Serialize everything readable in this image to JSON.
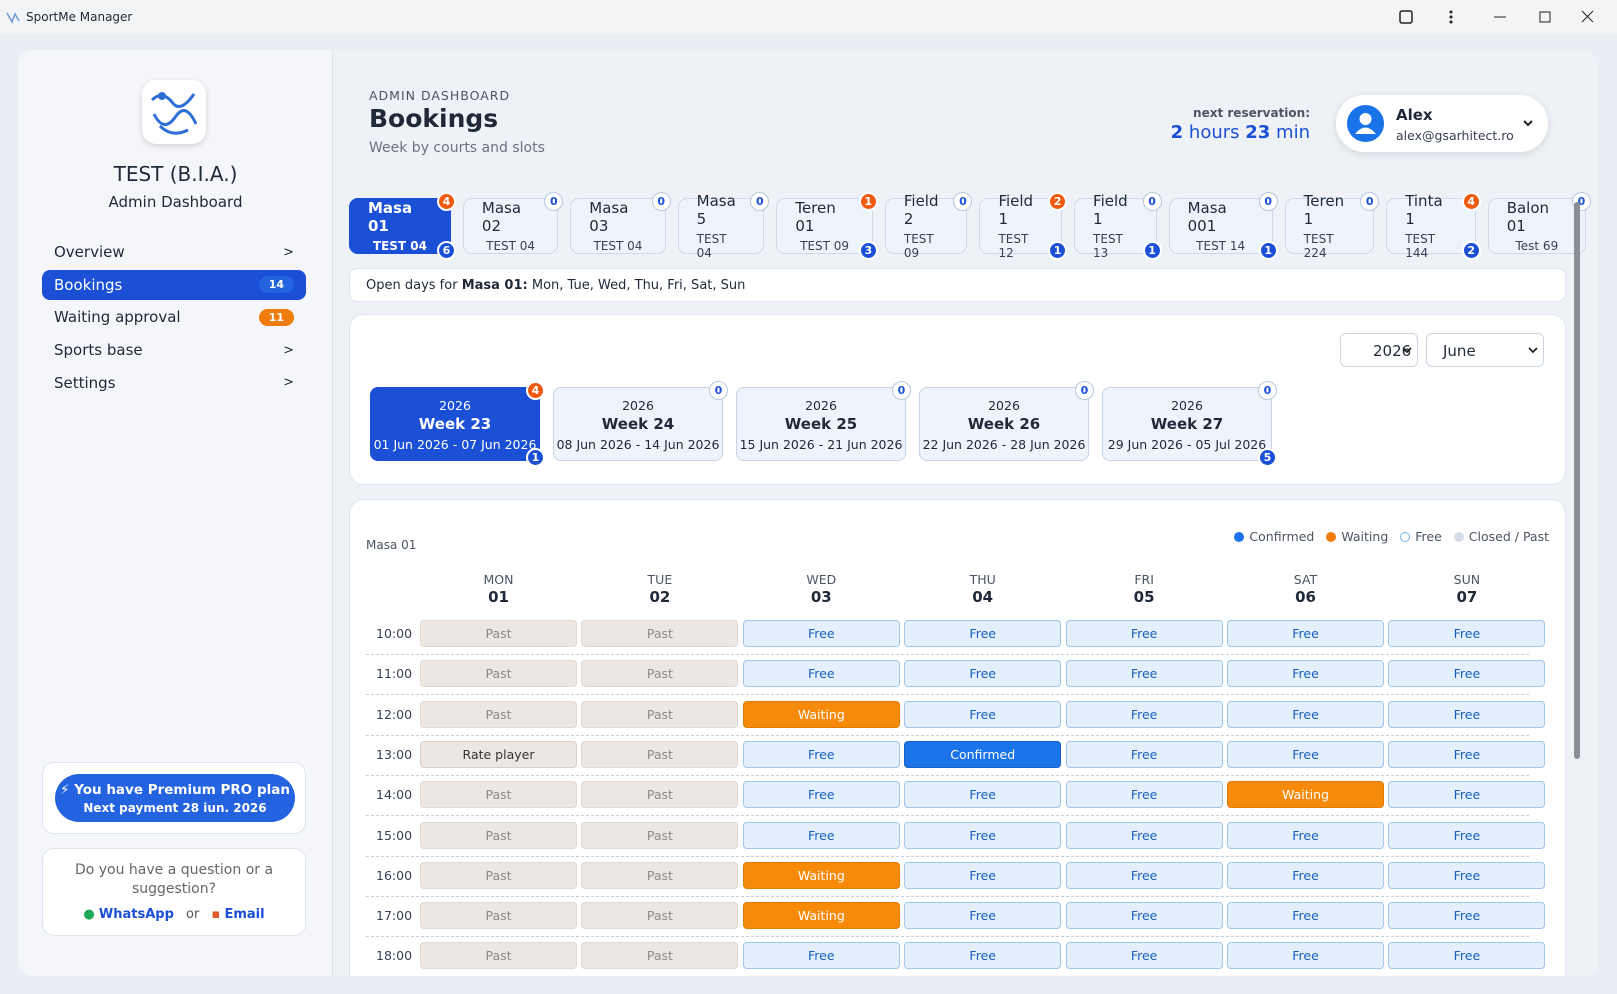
{
  "window": {
    "title": "SportMe Manager"
  },
  "sidebar": {
    "org": "TEST (B.I.A.)",
    "role": "Admin Dashboard",
    "nav": [
      {
        "label": "Overview",
        "marker": ">"
      },
      {
        "label": "Bookings",
        "badge": 14,
        "active": true
      },
      {
        "label": "Waiting approval",
        "badge": 11
      },
      {
        "label": "Sports base",
        "marker": ">"
      },
      {
        "label": "Settings",
        "marker": ">"
      }
    ],
    "plan": {
      "title": "You have Premium PRO plan",
      "next": "Next payment 28 iun. 2026"
    },
    "support": {
      "question": "Do you have a question or a suggestion?",
      "whatsapp": "WhatsApp",
      "or": "or",
      "email": "Email"
    }
  },
  "header": {
    "eyebrow": "ADMIN DASHBOARD",
    "title": "Bookings",
    "subtitle": "Week by courts and slots",
    "next_label": "next reservation:",
    "hours": 2,
    "hours_unit": "hours",
    "minutes": 23,
    "minutes_unit": "min",
    "user": {
      "name": "Alex",
      "email": "alex@gsarhitect.ro"
    }
  },
  "courts": [
    {
      "name": "Masa 01",
      "sub": "TEST 04",
      "top": 4,
      "bottom": 6,
      "active": true
    },
    {
      "name": "Masa 02",
      "sub": "TEST 04",
      "top": 0
    },
    {
      "name": "Masa 03",
      "sub": "TEST 04",
      "top": 0
    },
    {
      "name": "Masa 5",
      "sub": "TEST 04",
      "top": 0
    },
    {
      "name": "Teren 01",
      "sub": "TEST 09",
      "top": 1,
      "bottom": 3
    },
    {
      "name": "Field 2",
      "sub": "TEST 09",
      "top": 0
    },
    {
      "name": "Field 1",
      "sub": "TEST 12",
      "top": 2,
      "bottom": 1
    },
    {
      "name": "Field 1",
      "sub": "TEST 13",
      "top": 0,
      "bottom": 1
    },
    {
      "name": "Masa 001",
      "sub": "TEST 14",
      "top": 0,
      "bottom": 1
    },
    {
      "name": "Teren 1",
      "sub": "TEST 224",
      "top": 0
    },
    {
      "name": "Tinta 1",
      "sub": "TEST 144",
      "top": 4,
      "bottom": 2
    },
    {
      "name": "Balon 01",
      "sub": "Test 69",
      "top": 0
    }
  ],
  "open_days": {
    "prefix": "Open days for",
    "court": "Masa 01:",
    "days": "Mon, Tue, Wed, Thu, Fri, Sat, Sun"
  },
  "filters": {
    "year": "2026",
    "month": "June"
  },
  "weeks": [
    {
      "year": "2026",
      "label": "Week 23",
      "range": "01 Jun 2026 - 07 Jun 2026",
      "top": 4,
      "bottom": 1,
      "active": true
    },
    {
      "year": "2026",
      "label": "Week 24",
      "range": "08 Jun 2026 - 14 Jun 2026",
      "top": 0
    },
    {
      "year": "2026",
      "label": "Week 25",
      "range": "15 Jun 2026 - 21 Jun 2026",
      "top": 0
    },
    {
      "year": "2026",
      "label": "Week 26",
      "range": "22 Jun 2026 - 28 Jun 2026",
      "top": 0
    },
    {
      "year": "2026",
      "label": "Week 27",
      "range": "29 Jun 2026 - 05 Jul 2026",
      "top": 0,
      "bottom": 5
    }
  ],
  "calendar": {
    "court": "Masa 01",
    "legend": [
      {
        "label": "Confirmed",
        "color": "#1a73e8",
        "hollow": false
      },
      {
        "label": "Waiting",
        "color": "#f07c0c",
        "hollow": false
      },
      {
        "label": "Free",
        "color": "#6fb3e6",
        "hollow": true
      },
      {
        "label": "Closed / Past",
        "color": "#d7dde6",
        "hollow": false
      }
    ],
    "days": [
      {
        "dow": "MON",
        "date": "01"
      },
      {
        "dow": "TUE",
        "date": "02"
      },
      {
        "dow": "WED",
        "date": "03"
      },
      {
        "dow": "THU",
        "date": "04"
      },
      {
        "dow": "FRI",
        "date": "05"
      },
      {
        "dow": "SAT",
        "date": "06"
      },
      {
        "dow": "SUN",
        "date": "07"
      }
    ],
    "slot_styles": {
      "Past": "past",
      "Rate player": "rate",
      "Free": "free",
      "Waiting": "waiting",
      "Confirmed": "confirmed"
    },
    "rows": [
      {
        "time": "10:00",
        "slots": [
          "Past",
          "Past",
          "Free",
          "Free",
          "Free",
          "Free",
          "Free"
        ]
      },
      {
        "time": "11:00",
        "slots": [
          "Past",
          "Past",
          "Free",
          "Free",
          "Free",
          "Free",
          "Free"
        ]
      },
      {
        "time": "12:00",
        "slots": [
          "Past",
          "Past",
          "Waiting",
          "Free",
          "Free",
          "Free",
          "Free"
        ]
      },
      {
        "time": "13:00",
        "slots": [
          "Rate player",
          "Past",
          "Free",
          "Confirmed",
          "Free",
          "Free",
          "Free"
        ]
      },
      {
        "time": "14:00",
        "slots": [
          "Past",
          "Past",
          "Free",
          "Free",
          "Free",
          "Waiting",
          "Free"
        ]
      },
      {
        "time": "15:00",
        "slots": [
          "Past",
          "Past",
          "Free",
          "Free",
          "Free",
          "Free",
          "Free"
        ]
      },
      {
        "time": "16:00",
        "slots": [
          "Past",
          "Past",
          "Waiting",
          "Free",
          "Free",
          "Free",
          "Free"
        ]
      },
      {
        "time": "17:00",
        "slots": [
          "Past",
          "Past",
          "Waiting",
          "Free",
          "Free",
          "Free",
          "Free"
        ]
      },
      {
        "time": "18:00",
        "slots": [
          "Past",
          "Past",
          "Free",
          "Free",
          "Free",
          "Free",
          "Free"
        ]
      }
    ]
  }
}
